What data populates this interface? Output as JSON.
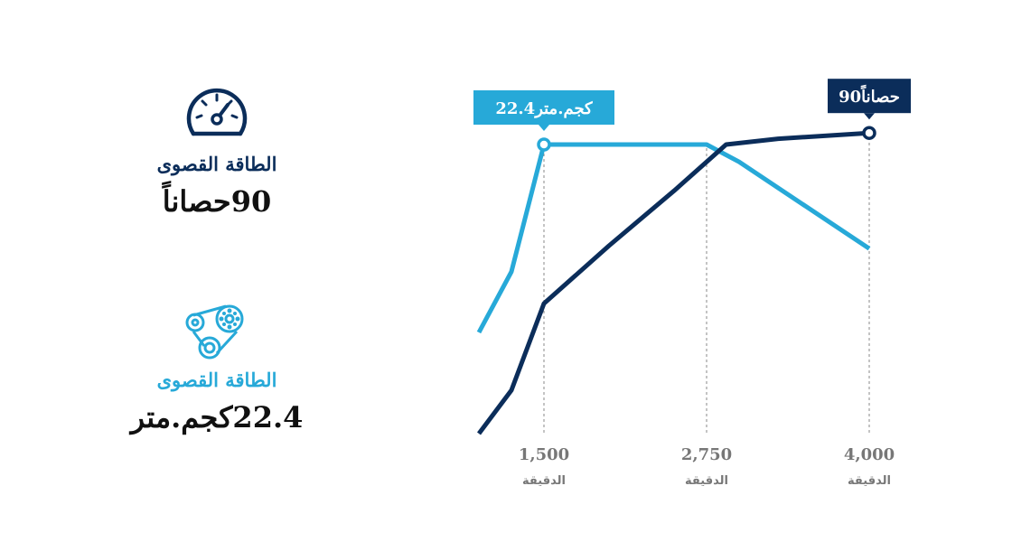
{
  "summary": {
    "power": {
      "icon": "speedometer-icon",
      "label": "الطاقة القصوى",
      "value": "90حصاناً",
      "color": "#0b2d5a"
    },
    "torque": {
      "icon": "engine-belt-icon",
      "label": "الطاقة القصوى",
      "value": "22.4كجم.متر",
      "color": "#27a9d8"
    }
  },
  "chart_data": {
    "type": "line",
    "x_ticks": [
      {
        "value": 1500,
        "label": "1,500",
        "unit": "الدقيقة"
      },
      {
        "value": 2750,
        "label": "2,750",
        "unit": "الدقيقة"
      },
      {
        "value": 4000,
        "label": "4,000",
        "unit": "الدقيقة"
      }
    ],
    "xlim": [
      900,
      4000
    ],
    "ylim": [
      0,
      100
    ],
    "grid": "vertical dashed lines at ticks",
    "series": [
      {
        "color": "#27a9d8",
        "x": [
          1000,
          1250,
          1500,
          2750,
          3000,
          4000
        ],
        "y": [
          35,
          56,
          100,
          100,
          94,
          64
        ],
        "callout": {
          "x": 1500,
          "y": 100,
          "text": "22.4كجم.متر"
        }
      },
      {
        "color": "#0b2d5a",
        "x": [
          1000,
          1250,
          1500,
          2000,
          2500,
          2900,
          3300,
          4000
        ],
        "y": [
          0,
          15,
          45,
          65,
          84,
          100,
          102,
          104
        ],
        "callout": {
          "x": 4000,
          "y": 104,
          "text": "90حصاناً"
        }
      }
    ]
  }
}
